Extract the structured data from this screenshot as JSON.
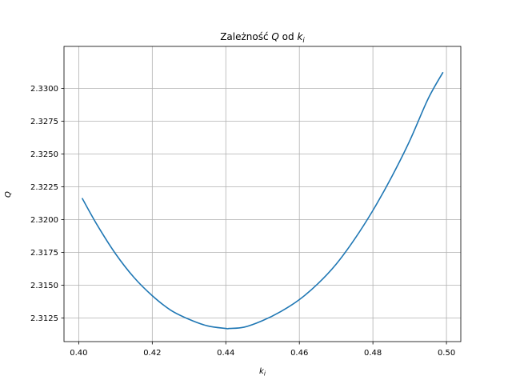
{
  "chart_data": {
    "type": "line",
    "title": {
      "prefix": "Zależność ",
      "q": "Q",
      "middle": " od ",
      "k": "k",
      "sub": "i"
    },
    "xlabel": {
      "k": "k",
      "sub": "i"
    },
    "ylabel": "Q",
    "xlim": [
      0.396,
      0.5039
    ],
    "ylim": [
      2.3107,
      2.3332
    ],
    "xticks": [
      0.4,
      0.42,
      0.44,
      0.46,
      0.48,
      0.5
    ],
    "xtick_labels": [
      "0.40",
      "0.42",
      "0.44",
      "0.46",
      "0.48",
      "0.50"
    ],
    "yticks": [
      2.3125,
      2.315,
      2.3175,
      2.32,
      2.3225,
      2.325,
      2.3275,
      2.33
    ],
    "ytick_labels": [
      "2.3125",
      "2.3150",
      "2.3175",
      "2.3200",
      "2.3225",
      "2.3250",
      "2.3275",
      "2.3300"
    ],
    "grid": true,
    "series": [
      {
        "color": "#1f77b4",
        "x": [
          0.401,
          0.405,
          0.41,
          0.415,
          0.42,
          0.425,
          0.43,
          0.435,
          0.44,
          0.441,
          0.445,
          0.45,
          0.455,
          0.46,
          0.465,
          0.47,
          0.475,
          0.48,
          0.485,
          0.49,
          0.495,
          0.499
        ],
        "y": [
          2.3216,
          2.3196,
          2.3174,
          2.3156,
          2.3142,
          2.3131,
          2.3124,
          2.3119,
          2.3117,
          2.3117,
          2.3118,
          2.3123,
          2.313,
          2.3139,
          2.3151,
          2.3166,
          2.3185,
          2.3207,
          2.3232,
          2.326,
          2.3292,
          2.3312
        ]
      }
    ]
  }
}
